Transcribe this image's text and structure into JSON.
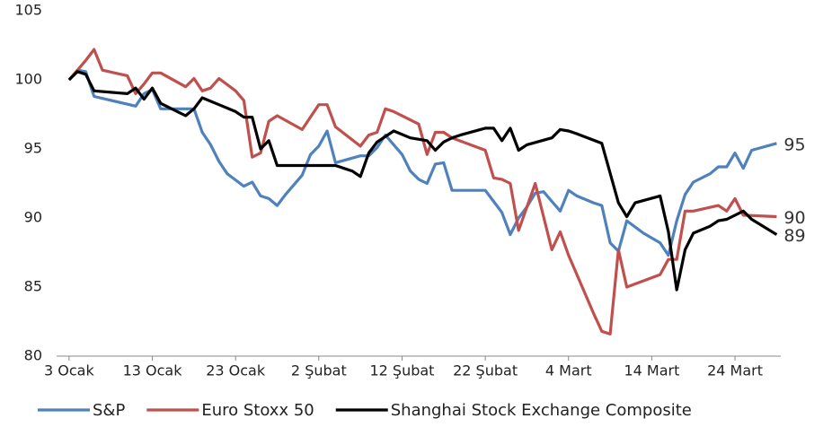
{
  "chart_data": {
    "type": "line",
    "xlim": [
      -1.5,
      85.5
    ],
    "xticks": [
      {
        "value": 0,
        "label": "3 Ocak"
      },
      {
        "value": 10,
        "label": "13 Ocak"
      },
      {
        "value": 20,
        "label": "23 Ocak"
      },
      {
        "value": 30,
        "label": "2 Şubat"
      },
      {
        "value": 40,
        "label": "12 Şubat"
      },
      {
        "value": 50,
        "label": "22 Şubat"
      },
      {
        "value": 60,
        "label": "4 Mart"
      },
      {
        "value": 70,
        "label": "14 Mart"
      },
      {
        "value": 80,
        "label": "24 Mart"
      }
    ],
    "ylim": [
      80,
      105
    ],
    "yticks": [
      80,
      85,
      90,
      95,
      100,
      105
    ],
    "grid": false,
    "legend": "bottom",
    "series": [
      {
        "name": "S&P",
        "color": "#4f81bd",
        "end_label": "95",
        "x": [
          0,
          1,
          2,
          3,
          8,
          9,
          10,
          11,
          12,
          15,
          16,
          17,
          18,
          19,
          21,
          22,
          23,
          24,
          25,
          26,
          28,
          29,
          30,
          31,
          32,
          35,
          36,
          37,
          38,
          40,
          41,
          42,
          43,
          44,
          45,
          46,
          49,
          50,
          51,
          52,
          53,
          54,
          55,
          56,
          57,
          58,
          59,
          60,
          61,
          63,
          64,
          65,
          66,
          67,
          69,
          71,
          72,
          73,
          74,
          75,
          77,
          78,
          79,
          80,
          81,
          82,
          85
        ],
        "values": [
          100,
          100.7,
          100.6,
          98.8,
          98.1,
          99.0,
          99.3,
          97.9,
          97.9,
          97.9,
          96.2,
          95.3,
          94.1,
          93.2,
          92.3,
          92.6,
          91.6,
          91.4,
          90.9,
          91.7,
          93.1,
          94.6,
          95.2,
          96.3,
          94.0,
          94.5,
          94.5,
          95.1,
          96.0,
          94.6,
          93.4,
          92.8,
          92.5,
          93.9,
          94.0,
          92.0,
          92.0,
          92.0,
          91.2,
          90.4,
          88.8,
          90.0,
          90.8,
          91.8,
          91.9,
          91.2,
          90.5,
          92.0,
          91.6,
          91.1,
          90.9,
          88.2,
          87.6,
          89.8,
          88.9,
          88.2,
          87.3,
          89.8,
          91.7,
          92.6,
          93.2,
          93.7,
          93.7,
          94.7,
          93.6,
          94.9,
          95.4
        ]
      },
      {
        "name": "Euro Stoxx 50",
        "color": "#c0504d",
        "end_label": "90",
        "x": [
          0,
          2,
          3,
          4,
          7,
          8,
          9,
          10,
          11,
          14,
          15,
          16,
          17,
          18,
          20,
          21,
          22,
          23,
          24,
          25,
          28,
          30,
          31,
          32,
          35,
          36,
          37,
          38,
          39,
          42,
          43,
          44,
          45,
          46,
          50,
          51,
          52,
          53,
          54,
          56,
          58,
          59,
          60,
          63,
          64,
          65,
          66,
          67,
          71,
          72,
          73,
          74,
          75,
          78,
          79,
          80,
          81,
          85
        ],
        "values": [
          100,
          101.4,
          102.2,
          100.7,
          100.3,
          99.0,
          99.7,
          100.5,
          100.5,
          99.5,
          100.1,
          99.2,
          99.4,
          100.1,
          99.2,
          98.5,
          94.4,
          94.7,
          97.0,
          97.4,
          96.4,
          98.2,
          98.2,
          96.6,
          95.2,
          96.0,
          96.2,
          97.9,
          97.7,
          96.8,
          94.6,
          96.2,
          96.2,
          95.8,
          94.9,
          92.9,
          92.8,
          92.5,
          89.1,
          92.5,
          87.7,
          89.0,
          87.3,
          83.1,
          81.8,
          81.6,
          87.7,
          85.0,
          85.9,
          87.0,
          87.0,
          90.5,
          90.5,
          90.9,
          90.5,
          91.4,
          90.2,
          90.1
        ]
      },
      {
        "name": "Shanghai Stock Exchange Composite",
        "color": "#000000",
        "end_label": "89",
        "x": [
          0,
          1,
          2,
          3,
          7,
          8,
          9,
          10,
          11,
          14,
          15,
          16,
          18,
          20,
          21,
          22,
          23,
          24,
          25,
          28,
          32,
          34,
          35,
          36,
          37,
          39,
          41,
          43,
          44,
          45,
          46,
          47,
          50,
          51,
          52,
          53,
          54,
          55,
          58,
          59,
          60,
          61,
          64,
          66,
          67,
          68,
          71,
          72,
          73,
          74,
          75,
          77,
          78,
          79,
          81,
          82,
          85
        ],
        "values": [
          100,
          100.6,
          100.4,
          99.2,
          99.0,
          99.4,
          98.6,
          99.4,
          98.3,
          97.4,
          97.9,
          98.7,
          98.2,
          97.7,
          97.3,
          97.3,
          95.0,
          95.6,
          93.8,
          93.8,
          93.8,
          93.4,
          93.0,
          94.7,
          95.5,
          96.3,
          95.8,
          95.6,
          94.9,
          95.5,
          95.8,
          96.0,
          96.5,
          96.5,
          95.6,
          96.5,
          94.9,
          95.3,
          95.8,
          96.4,
          96.3,
          96.1,
          95.4,
          91.1,
          90.1,
          91.1,
          91.6,
          89.0,
          84.8,
          87.7,
          88.9,
          89.4,
          89.8,
          89.9,
          90.5,
          89.9,
          88.8
        ]
      }
    ]
  }
}
